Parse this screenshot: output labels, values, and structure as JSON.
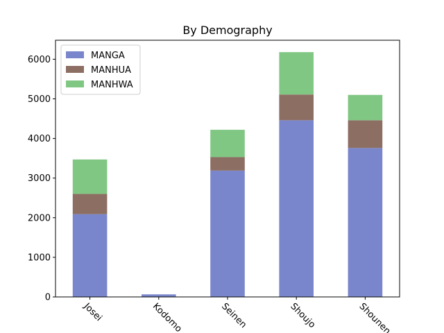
{
  "chart_data": {
    "type": "bar",
    "stacked": true,
    "title": "By Demography",
    "xlabel": "",
    "ylabel": "",
    "categories": [
      "Josei",
      "Kodomo",
      "Seinen",
      "Shoujo",
      "Shounen"
    ],
    "series": [
      {
        "name": "MANGA",
        "values": [
          2090,
          65,
          3190,
          4460,
          3760
        ],
        "color": "#7986cb"
      },
      {
        "name": "MANHUA",
        "values": [
          510,
          0,
          340,
          650,
          700
        ],
        "color": "#8d6e63"
      },
      {
        "name": "MANHWA",
        "values": [
          870,
          0,
          690,
          1070,
          640
        ],
        "color": "#81c784"
      }
    ],
    "ylim": [
      0,
      6480
    ],
    "yticks": [
      0,
      1000,
      2000,
      3000,
      4000,
      5000,
      6000
    ],
    "legend_position": "top-left",
    "grid": false
  }
}
